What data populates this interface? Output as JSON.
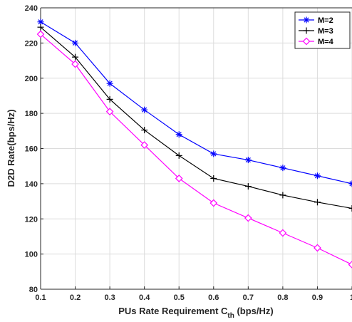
{
  "chart_data": {
    "type": "line",
    "title": "",
    "xlabel": "PUs Rate Requirement C",
    "xlabel_sub": "th",
    "xlabel_unit": " (bps/Hz)",
    "ylabel": "D2D Rate(bps/Hz)",
    "x": [
      0.1,
      0.2,
      0.3,
      0.4,
      0.5,
      0.6,
      0.7,
      0.8,
      0.9,
      1.0
    ],
    "x_tick_labels": [
      "0.1",
      "0.2",
      "0.3",
      "0.4",
      "0.5",
      "0.6",
      "0.7",
      "0.8",
      "0.9",
      "1"
    ],
    "xlim": [
      0.1,
      1.0
    ],
    "ylim": [
      80,
      240
    ],
    "y_ticks": [
      80,
      100,
      120,
      140,
      160,
      180,
      200,
      220,
      240
    ],
    "grid": true,
    "legend_position": "top-right",
    "series": [
      {
        "name": "M=2",
        "color": "#0000ff",
        "marker": "asterisk",
        "values": [
          232,
          220,
          197,
          182,
          168,
          157,
          153.5,
          149,
          144.5,
          140
        ]
      },
      {
        "name": "M=3",
        "color": "#000000",
        "marker": "plus",
        "values": [
          229,
          212,
          188,
          170.5,
          156,
          143,
          138.5,
          133.5,
          129.5,
          126
        ]
      },
      {
        "name": "M=4",
        "color": "#ff00ff",
        "marker": "diamond",
        "values": [
          225,
          208,
          181,
          162,
          143,
          129,
          120.5,
          112,
          103.5,
          94
        ]
      }
    ]
  }
}
